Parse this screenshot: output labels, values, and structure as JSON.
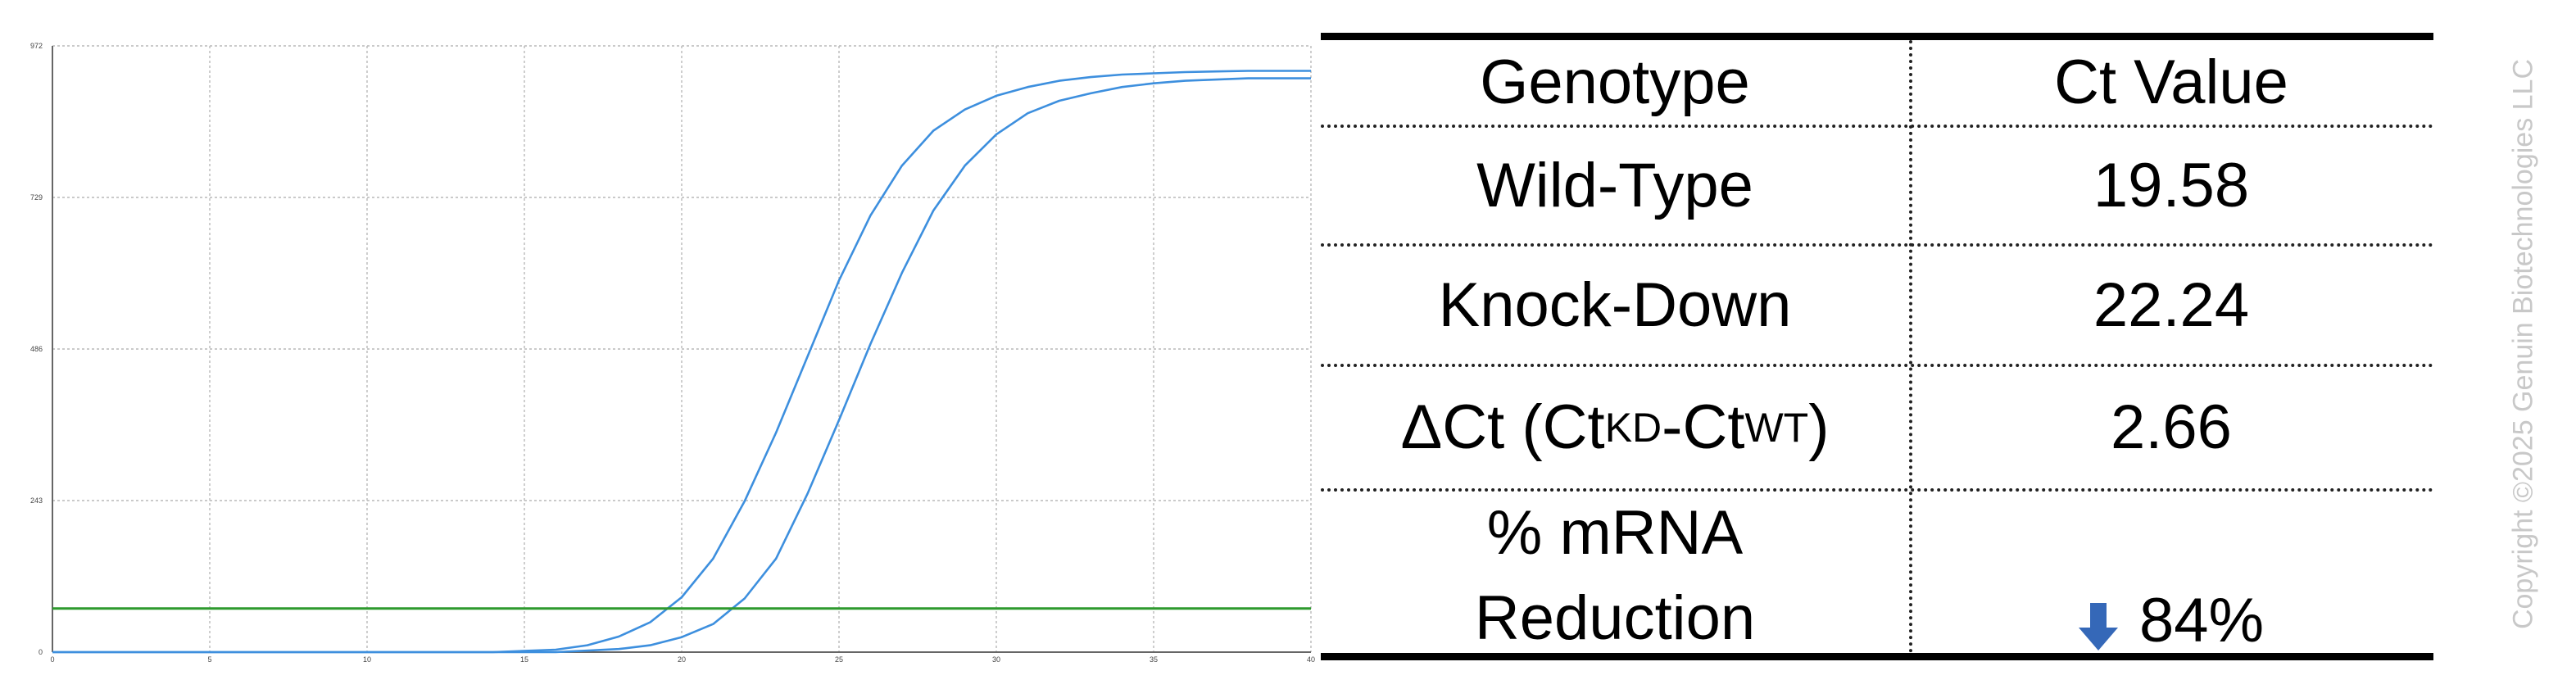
{
  "chart_data": {
    "type": "line",
    "title": "",
    "xlabel": "",
    "ylabel": "",
    "xlim": [
      0,
      40
    ],
    "ylim": [
      0,
      972
    ],
    "x_ticks": [
      0,
      5,
      10,
      15,
      20,
      25,
      30,
      35,
      40
    ],
    "y_ticks": [
      0,
      243,
      486,
      729,
      972
    ],
    "grid": true,
    "series": [
      {
        "color": "#3d8fde",
        "x": [
          0,
          14,
          16,
          17,
          18,
          19,
          20,
          21,
          22,
          23,
          24,
          25,
          26,
          27,
          28,
          29,
          30,
          31,
          32,
          33,
          34,
          35,
          36,
          37,
          38,
          40
        ],
        "y": [
          0,
          0,
          4,
          11,
          25,
          48,
          88,
          150,
          242,
          352,
          474,
          596,
          700,
          780,
          836,
          870,
          892,
          906,
          916,
          922,
          926,
          928,
          930,
          931,
          932,
          932
        ]
      },
      {
        "color": "#3d8fde",
        "x": [
          0,
          16,
          18,
          19,
          20,
          21,
          22,
          23,
          24,
          25,
          26,
          27,
          28,
          29,
          30,
          31,
          32,
          33,
          34,
          35,
          36,
          37,
          38,
          40
        ],
        "y": [
          0,
          0,
          5,
          11,
          24,
          45,
          86,
          150,
          254,
          372,
          494,
          608,
          708,
          780,
          830,
          864,
          884,
          896,
          906,
          912,
          916,
          918,
          920,
          920
        ]
      },
      {
        "color": "#2e9a2e",
        "x": [
          0,
          40
        ],
        "y": [
          70,
          70
        ]
      }
    ]
  },
  "table": {
    "headers": [
      "Genotype",
      "Ct Value"
    ],
    "rows": [
      {
        "label": "Wild-Type",
        "value": "19.58"
      },
      {
        "label": "Knock-Down",
        "value": "22.24"
      },
      {
        "label_prefix": "ΔCt (Ct",
        "label_sub1": "KD",
        "label_mid": "-Ct",
        "label_sub2": "WT",
        "label_suffix": ")",
        "value": "2.66"
      },
      {
        "label_line1": "% mRNA",
        "label_line2": "Reduction",
        "value": "84%",
        "icon": "down-arrow-icon",
        "icon_color": "#3568b8"
      }
    ]
  },
  "copyright": "Copyright ©2025 Genuin Biotechnologies LLC"
}
